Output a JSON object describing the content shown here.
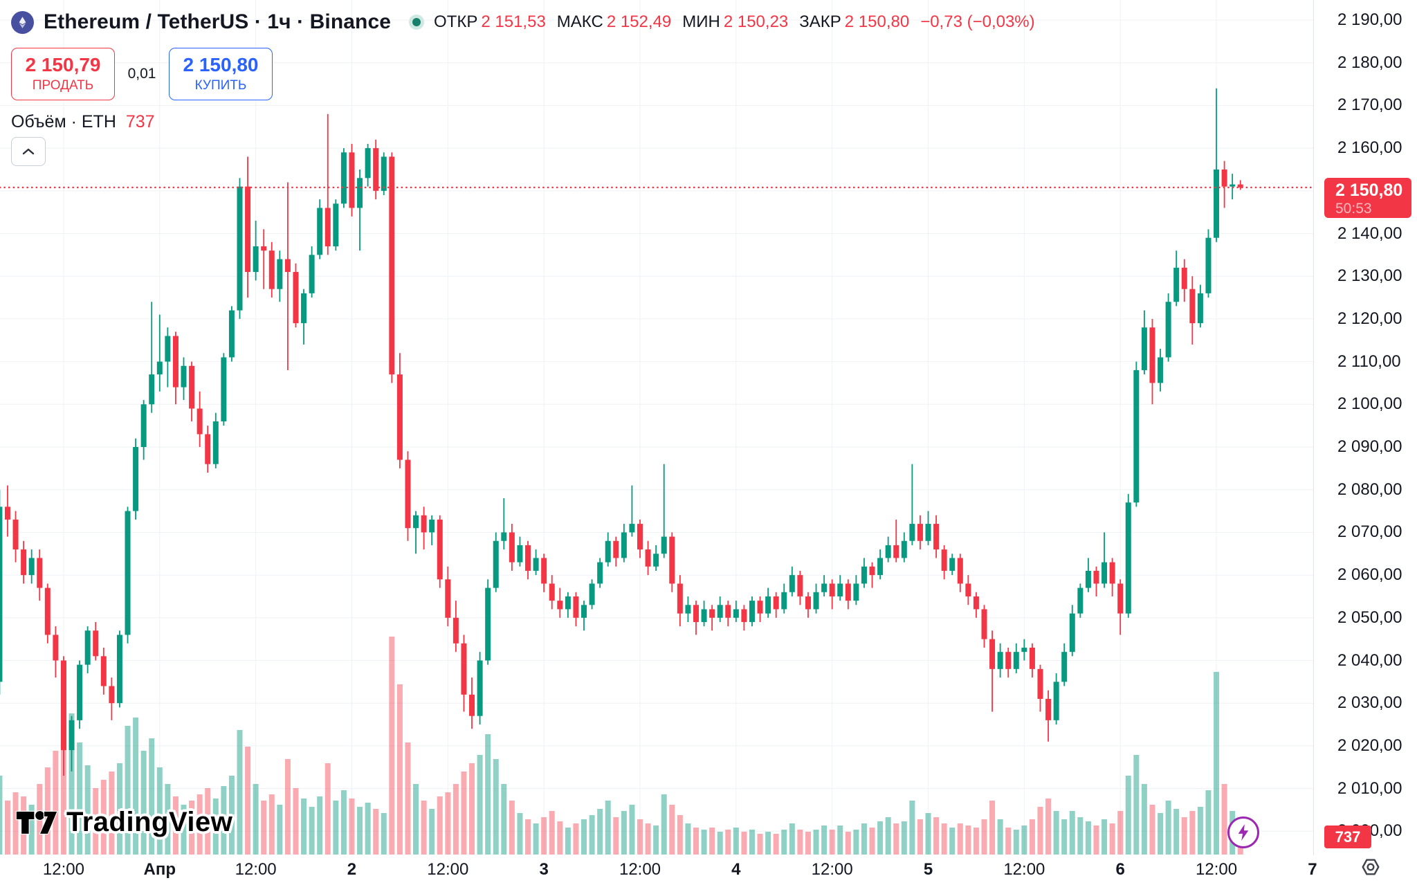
{
  "header": {
    "title": "Ethereum / TetherUS · 1ч · Binance",
    "ohlc": {
      "open_label": "ОТКР",
      "open": "2 151,53",
      "high_label": "МАКС",
      "high": "2 152,49",
      "low_label": "МИН",
      "low": "2 150,23",
      "close_label": "ЗАКР",
      "close": "2 150,80",
      "change": "−0,73 (−0,03%)"
    },
    "sell_price": "2 150,79",
    "sell_label": "ПРОДАТЬ",
    "spread": "0,01",
    "buy_price": "2 150,80",
    "buy_label": "КУПИТЬ",
    "volume_label": "Объём · ETH",
    "volume_value": "737"
  },
  "watermark": "TradingView",
  "price_axis": {
    "ticks": [
      "2 190,00",
      "2 180,00",
      "2 170,00",
      "2 160,00",
      "2 150,00",
      "2 140,00",
      "2 130,00",
      "2 120,00",
      "2 110,00",
      "2 100,00",
      "2 090,00",
      "2 080,00",
      "2 070,00",
      "2 060,00",
      "2 050,00",
      "2 040,00",
      "2 030,00",
      "2 020,00",
      "2 010,00",
      "2 000,00"
    ],
    "last_price": "2 150,80",
    "countdown": "50:53",
    "volume_tag": "737"
  },
  "time_axis": [
    {
      "label": "12:00",
      "slot": 8,
      "major": false
    },
    {
      "label": "Апр",
      "slot": 20,
      "major": true
    },
    {
      "label": "12:00",
      "slot": 32,
      "major": false
    },
    {
      "label": "2",
      "slot": 44,
      "major": true
    },
    {
      "label": "12:00",
      "slot": 56,
      "major": false
    },
    {
      "label": "3",
      "slot": 68,
      "major": true
    },
    {
      "label": "12:00",
      "slot": 80,
      "major": false
    },
    {
      "label": "4",
      "slot": 92,
      "major": true
    },
    {
      "label": "12:00",
      "slot": 104,
      "major": false
    },
    {
      "label": "5",
      "slot": 116,
      "major": true
    },
    {
      "label": "12:00",
      "slot": 128,
      "major": false
    },
    {
      "label": "6",
      "slot": 140,
      "major": true
    },
    {
      "label": "12:00",
      "slot": 152,
      "major": false
    },
    {
      "label": "7",
      "slot": 164,
      "major": true
    }
  ],
  "colors": {
    "up": "#089981",
    "down": "#f23645",
    "vol_up": "rgba(8,153,129,0.45)",
    "vol_down": "rgba(242,54,69,0.42)",
    "buy_blue": "#2962ff",
    "text": "#131722",
    "muted": "#787b86",
    "grid": "#eef1f6",
    "axis_border": "#e0e3eb",
    "status_ring": "#cde9e1",
    "status_core": "#17806b",
    "lightning": "#9c27b0",
    "eth_badge": "#474fa0"
  },
  "chart_data": {
    "type": "candlestick",
    "title": "Ethereum / TetherUS 1h Binance",
    "ylim": [
      1998,
      2193
    ],
    "grid": true,
    "legend_position": "top-left",
    "columns": [
      "open",
      "high",
      "low",
      "close",
      "volume"
    ],
    "candles": [
      [
        2035,
        2080,
        2032,
        2076,
        3800
      ],
      [
        2076,
        2081,
        2069,
        2073,
        2600
      ],
      [
        2073,
        2075,
        2063,
        2066,
        3000
      ],
      [
        2066,
        2068,
        2058,
        2060,
        2800
      ],
      [
        2060,
        2066,
        2058,
        2064,
        2400
      ],
      [
        2064,
        2066,
        2054,
        2057,
        3400
      ],
      [
        2057,
        2058,
        2044,
        2046,
        4200
      ],
      [
        2046,
        2048,
        2036,
        2040,
        5000
      ],
      [
        2040,
        2041,
        2013,
        2019,
        6400
      ],
      [
        2019,
        2027,
        2014,
        2026,
        6800
      ],
      [
        2026,
        2040,
        2024,
        2039,
        5400
      ],
      [
        2039,
        2048,
        2037,
        2047,
        4300
      ],
      [
        2047,
        2049,
        2040,
        2041,
        3200
      ],
      [
        2041,
        2043,
        2032,
        2034,
        3600
      ],
      [
        2034,
        2036,
        2026,
        2030,
        4000
      ],
      [
        2030,
        2047,
        2029,
        2046,
        4400
      ],
      [
        2046,
        2076,
        2044,
        2075,
        6200
      ],
      [
        2075,
        2092,
        2073,
        2090,
        6600
      ],
      [
        2090,
        2101,
        2087,
        2100,
        5000
      ],
      [
        2100,
        2124,
        2098,
        2107,
        5600
      ],
      [
        2107,
        2121,
        2103,
        2110,
        4200
      ],
      [
        2110,
        2118,
        2104,
        2116,
        3400
      ],
      [
        2116,
        2117,
        2100,
        2104,
        2800
      ],
      [
        2104,
        2111,
        2101,
        2109,
        2400
      ],
      [
        2109,
        2110,
        2096,
        2099,
        2600
      ],
      [
        2099,
        2103,
        2090,
        2093,
        2900
      ],
      [
        2093,
        2095,
        2084,
        2086,
        3200
      ],
      [
        2086,
        2098,
        2085,
        2096,
        2700
      ],
      [
        2096,
        2112,
        2095,
        2111,
        3300
      ],
      [
        2111,
        2123,
        2110,
        2122,
        3800
      ],
      [
        2122,
        2153,
        2120,
        2151,
        6000
      ],
      [
        2151,
        2158,
        2125,
        2131,
        5200
      ],
      [
        2131,
        2143,
        2129,
        2137,
        3400
      ],
      [
        2137,
        2141,
        2127,
        2136,
        2600
      ],
      [
        2136,
        2138,
        2125,
        2127,
        2900
      ],
      [
        2127,
        2136,
        2124,
        2134,
        2400
      ],
      [
        2134,
        2152,
        2108,
        2131,
        4600
      ],
      [
        2131,
        2133,
        2118,
        2119,
        3200
      ],
      [
        2119,
        2127,
        2114,
        2126,
        2700
      ],
      [
        2126,
        2137,
        2125,
        2135,
        2300
      ],
      [
        2135,
        2148,
        2134,
        2146,
        2800
      ],
      [
        2146,
        2168,
        2135,
        2137,
        4400
      ],
      [
        2137,
        2148,
        2136,
        2147,
        2600
      ],
      [
        2147,
        2160,
        2146,
        2159,
        3100
      ],
      [
        2159,
        2161,
        2144,
        2146,
        2700
      ],
      [
        2146,
        2155,
        2136,
        2153,
        2300
      ],
      [
        2153,
        2161,
        2151,
        2160,
        2500
      ],
      [
        2160,
        2162,
        2148,
        2150,
        2200
      ],
      [
        2150,
        2159,
        2149,
        2158,
        2000
      ],
      [
        2158,
        2159,
        2105,
        2107,
        10500
      ],
      [
        2107,
        2112,
        2085,
        2087,
        8200
      ],
      [
        2087,
        2089,
        2068,
        2071,
        5400
      ],
      [
        2071,
        2075,
        2065,
        2074,
        3400
      ],
      [
        2074,
        2076,
        2066,
        2070,
        2600
      ],
      [
        2070,
        2074,
        2067,
        2073,
        2200
      ],
      [
        2073,
        2074,
        2057,
        2059,
        2800
      ],
      [
        2059,
        2062,
        2048,
        2050,
        3000
      ],
      [
        2050,
        2054,
        2042,
        2044,
        3400
      ],
      [
        2044,
        2046,
        2028,
        2032,
        4000
      ],
      [
        2032,
        2036,
        2024,
        2027,
        4400
      ],
      [
        2027,
        2042,
        2025,
        2040,
        4800
      ],
      [
        2040,
        2059,
        2039,
        2057,
        5800
      ],
      [
        2057,
        2070,
        2056,
        2068,
        4600
      ],
      [
        2068,
        2078,
        2066,
        2070,
        3400
      ],
      [
        2070,
        2072,
        2061,
        2063,
        2600
      ],
      [
        2063,
        2069,
        2062,
        2067,
        2000
      ],
      [
        2067,
        2068,
        2059,
        2061,
        1700
      ],
      [
        2061,
        2066,
        2060,
        2064,
        1500
      ],
      [
        2064,
        2065,
        2056,
        2058,
        1800
      ],
      [
        2058,
        2060,
        2052,
        2054,
        2100
      ],
      [
        2054,
        2057,
        2050,
        2052,
        1600
      ],
      [
        2052,
        2056,
        2050,
        2055,
        1300
      ],
      [
        2055,
        2056,
        2048,
        2050,
        1500
      ],
      [
        2050,
        2054,
        2047,
        2053,
        1700
      ],
      [
        2053,
        2059,
        2052,
        2058,
        1900
      ],
      [
        2058,
        2064,
        2057,
        2063,
        2200
      ],
      [
        2063,
        2070,
        2062,
        2068,
        2600
      ],
      [
        2068,
        2069,
        2062,
        2064,
        1800
      ],
      [
        2064,
        2072,
        2063,
        2070,
        2100
      ],
      [
        2070,
        2081,
        2069,
        2072,
        2400
      ],
      [
        2072,
        2073,
        2064,
        2066,
        1700
      ],
      [
        2066,
        2068,
        2060,
        2062,
        1500
      ],
      [
        2062,
        2067,
        2061,
        2065,
        1400
      ],
      [
        2065,
        2086,
        2064,
        2069,
        2900
      ],
      [
        2069,
        2070,
        2056,
        2058,
        2400
      ],
      [
        2058,
        2060,
        2048,
        2051,
        1900
      ],
      [
        2051,
        2055,
        2049,
        2053,
        1500
      ],
      [
        2053,
        2054,
        2046,
        2049,
        1300
      ],
      [
        2049,
        2054,
        2048,
        2052,
        1200
      ],
      [
        2052,
        2053,
        2047,
        2050,
        1300
      ],
      [
        2050,
        2055,
        2049,
        2053,
        1100
      ],
      [
        2053,
        2054,
        2048,
        2050,
        1200
      ],
      [
        2050,
        2054,
        2049,
        2052,
        1300
      ],
      [
        2052,
        2053,
        2047,
        2049,
        1100
      ],
      [
        2049,
        2055,
        2048,
        2054,
        1200
      ],
      [
        2054,
        2055,
        2049,
        2051,
        1000
      ],
      [
        2051,
        2057,
        2050,
        2055,
        1100
      ],
      [
        2055,
        2056,
        2050,
        2052,
        1000
      ],
      [
        2052,
        2058,
        2051,
        2056,
        1200
      ],
      [
        2056,
        2062,
        2055,
        2060,
        1500
      ],
      [
        2060,
        2061,
        2053,
        2055,
        1200
      ],
      [
        2055,
        2056,
        2050,
        2052,
        1100
      ],
      [
        2052,
        2058,
        2051,
        2056,
        1200
      ],
      [
        2056,
        2060,
        2055,
        2058,
        1400
      ],
      [
        2058,
        2059,
        2052,
        2055,
        1200
      ],
      [
        2055,
        2060,
        2054,
        2058,
        1400
      ],
      [
        2058,
        2059,
        2052,
        2054,
        1100
      ],
      [
        2054,
        2060,
        2053,
        2058,
        1200
      ],
      [
        2058,
        2064,
        2057,
        2062,
        1500
      ],
      [
        2062,
        2063,
        2057,
        2060,
        1300
      ],
      [
        2060,
        2066,
        2059,
        2064,
        1600
      ],
      [
        2064,
        2069,
        2063,
        2067,
        1800
      ],
      [
        2067,
        2073,
        2063,
        2064,
        1500
      ],
      [
        2064,
        2070,
        2063,
        2068,
        1600
      ],
      [
        2068,
        2086,
        2067,
        2072,
        2600
      ],
      [
        2072,
        2074,
        2066,
        2068,
        1700
      ],
      [
        2068,
        2075,
        2067,
        2072,
        2000
      ],
      [
        2072,
        2074,
        2064,
        2066,
        1800
      ],
      [
        2066,
        2067,
        2059,
        2061,
        1500
      ],
      [
        2061,
        2065,
        2060,
        2064,
        1300
      ],
      [
        2064,
        2065,
        2056,
        2058,
        1500
      ],
      [
        2058,
        2060,
        2053,
        2055,
        1400
      ],
      [
        2055,
        2056,
        2050,
        2052,
        1300
      ],
      [
        2052,
        2053,
        2043,
        2045,
        1700
      ],
      [
        2045,
        2047,
        2028,
        2038,
        2600
      ],
      [
        2038,
        2044,
        2036,
        2042,
        1700
      ],
      [
        2042,
        2043,
        2036,
        2038,
        1300
      ],
      [
        2038,
        2044,
        2037,
        2042,
        1200
      ],
      [
        2042,
        2045,
        2040,
        2043,
        1400
      ],
      [
        2043,
        2044,
        2036,
        2038,
        1700
      ],
      [
        2038,
        2039,
        2028,
        2031,
        2300
      ],
      [
        2031,
        2033,
        2021,
        2026,
        2700
      ],
      [
        2026,
        2037,
        2025,
        2035,
        2100
      ],
      [
        2035,
        2044,
        2034,
        2042,
        1700
      ],
      [
        2042,
        2053,
        2041,
        2051,
        2100
      ],
      [
        2051,
        2058,
        2050,
        2057,
        1800
      ],
      [
        2057,
        2064,
        2056,
        2061,
        1600
      ],
      [
        2061,
        2062,
        2055,
        2058,
        1400
      ],
      [
        2058,
        2070,
        2057,
        2063,
        1700
      ],
      [
        2063,
        2064,
        2055,
        2058,
        1500
      ],
      [
        2058,
        2059,
        2046,
        2051,
        2100
      ],
      [
        2051,
        2079,
        2050,
        2077,
        3800
      ],
      [
        2077,
        2110,
        2076,
        2108,
        4800
      ],
      [
        2108,
        2122,
        2107,
        2118,
        3400
      ],
      [
        2118,
        2120,
        2100,
        2105,
        2400
      ],
      [
        2105,
        2113,
        2103,
        2111,
        2000
      ],
      [
        2111,
        2126,
        2110,
        2124,
        2600
      ],
      [
        2124,
        2136,
        2123,
        2132,
        2200
      ],
      [
        2132,
        2134,
        2124,
        2127,
        1800
      ],
      [
        2127,
        2130,
        2114,
        2119,
        2100
      ],
      [
        2119,
        2128,
        2118,
        2126,
        2300
      ],
      [
        2126,
        2141,
        2125,
        2139,
        3100
      ],
      [
        2139,
        2174,
        2138,
        2155,
        8800
      ],
      [
        2155,
        2157,
        2146,
        2151,
        3400
      ],
      [
        2151,
        2154,
        2148,
        2151.5,
        2100
      ],
      [
        2151.5,
        2152.49,
        2150.23,
        2150.8,
        737
      ]
    ]
  }
}
